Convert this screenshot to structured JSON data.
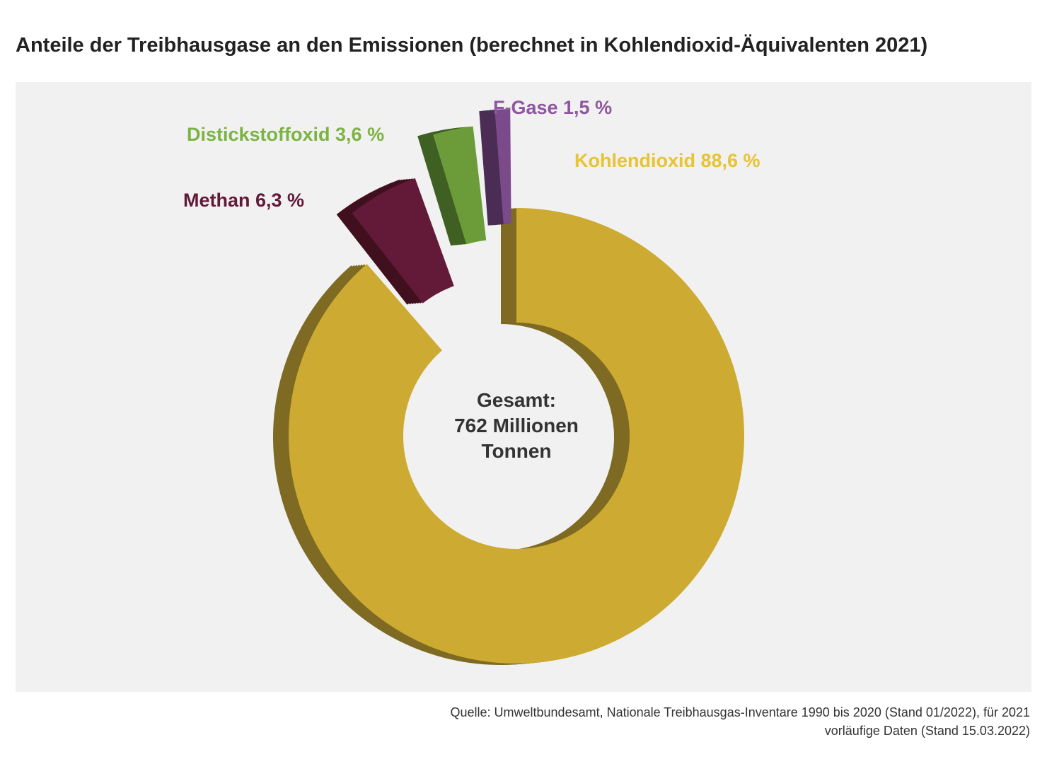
{
  "title": "Anteile der Treibhausgase an den Emissionen (berechnet in Kohlendioxid-Äquivalenten 2021)",
  "center": {
    "line1": "Gesamt:",
    "line2": "762 Millionen",
    "line3": "Tonnen"
  },
  "source": {
    "line1": "Quelle: Umweltbundesamt, Nationale Treibhausgas-Inventare 1990 bis 2020 (Stand 01/2022), für 2021",
    "line2": "vorläufige Daten (Stand 15.03.2022)"
  },
  "chart_data": {
    "type": "pie",
    "style": "3d-donut-exploded",
    "unit": "%",
    "slices": [
      {
        "name": "Kohlendioxid",
        "label": "Kohlendioxid 88,6 %",
        "value": 88.6,
        "color": "#cdaa32",
        "side_color": "#7e6a22"
      },
      {
        "name": "Methan",
        "label": "Methan 6,3 %",
        "value": 6.3,
        "color": "#621a38",
        "side_color": "#40101f"
      },
      {
        "name": "Distickstoffoxid",
        "label": "Distickstoffoxid 3,6 %",
        "value": 3.6,
        "color": "#6c9c3a",
        "side_color": "#3f6022"
      },
      {
        "name": "F-Gase",
        "label": "F-Gase 1,5 %",
        "value": 1.5,
        "color": "#7b4a8a",
        "side_color": "#4b2c55"
      }
    ],
    "label_colors": {
      "Kohlendioxid": "#e8c333",
      "Methan": "#621a38",
      "Distickstoffoxid": "#7cb342",
      "F-Gase": "#8e57a0"
    },
    "legend": "none"
  }
}
